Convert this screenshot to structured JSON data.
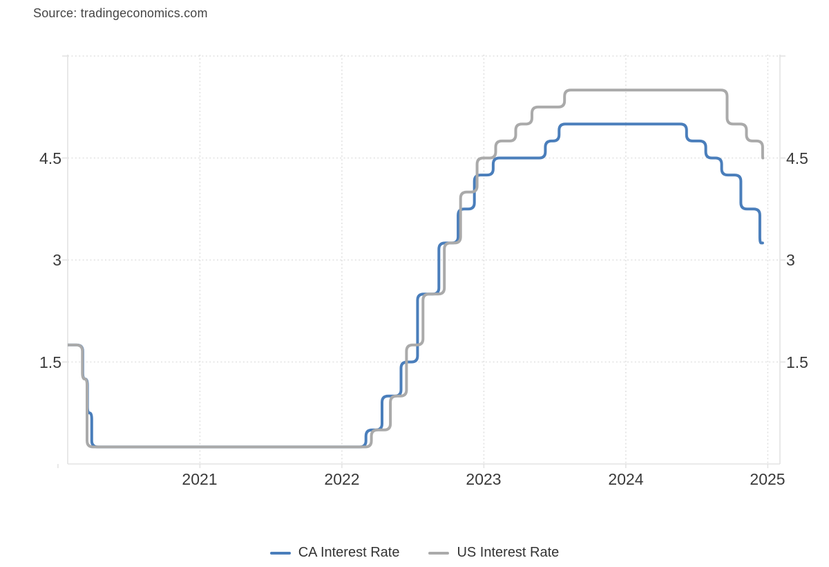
{
  "source_label": "Source: tradingeconomics.com",
  "legend": {
    "items": [
      {
        "label": "CA Interest Rate",
        "color": "#4a7ebb"
      },
      {
        "label": "US Interest Rate",
        "color": "#aaaaaa"
      }
    ]
  },
  "chart_data": {
    "type": "line",
    "title": "",
    "unit": "percent",
    "grid": "dotted",
    "legend_position": "bottom",
    "x_axis": {
      "start": "2020-01-01",
      "end": "2025-01-01",
      "tick_labels": [
        "2021",
        "2022",
        "2023",
        "2024",
        "2025"
      ]
    },
    "y_axis": {
      "min": 0,
      "max": 6.05,
      "ticks": [
        1.5,
        3,
        4.5
      ],
      "tick_labels": [
        "1.5",
        "3",
        "4.5"
      ],
      "gridlines": [
        1.5,
        3,
        4.5,
        6
      ],
      "labels_both_sides": true
    },
    "series": [
      {
        "name": "CA Interest Rate",
        "color": "#4a7ebb",
        "line_width": 4,
        "end_date": "2024-12-18",
        "steps": [
          [
            "2020-01-01",
            1.75
          ],
          [
            "2020-03-04",
            1.25
          ],
          [
            "2020-03-16",
            0.75
          ],
          [
            "2020-03-27",
            0.25
          ],
          [
            "2022-03-02",
            0.5
          ],
          [
            "2022-04-13",
            1.0
          ],
          [
            "2022-06-01",
            1.5
          ],
          [
            "2022-07-13",
            2.5
          ],
          [
            "2022-09-07",
            3.25
          ],
          [
            "2022-10-26",
            3.75
          ],
          [
            "2022-12-07",
            4.25
          ],
          [
            "2023-01-25",
            4.5
          ],
          [
            "2023-06-07",
            4.75
          ],
          [
            "2023-07-12",
            5.0
          ],
          [
            "2024-06-05",
            4.75
          ],
          [
            "2024-07-24",
            4.5
          ],
          [
            "2024-09-04",
            4.25
          ],
          [
            "2024-10-23",
            3.75
          ],
          [
            "2024-12-11",
            3.25
          ]
        ]
      },
      {
        "name": "US Interest Rate",
        "color": "#aaaaaa",
        "line_width": 4,
        "end_date": "2024-12-19",
        "steps": [
          [
            "2020-01-01",
            1.75
          ],
          [
            "2020-03-03",
            1.25
          ],
          [
            "2020-03-15",
            0.25
          ],
          [
            "2022-03-16",
            0.5
          ],
          [
            "2022-05-04",
            1.0
          ],
          [
            "2022-06-15",
            1.75
          ],
          [
            "2022-07-27",
            2.5
          ],
          [
            "2022-09-21",
            3.25
          ],
          [
            "2022-11-02",
            4.0
          ],
          [
            "2022-12-14",
            4.5
          ],
          [
            "2023-02-01",
            4.75
          ],
          [
            "2023-03-22",
            5.0
          ],
          [
            "2023-05-03",
            5.25
          ],
          [
            "2023-07-26",
            5.5
          ],
          [
            "2024-09-18",
            5.0
          ],
          [
            "2024-11-07",
            4.75
          ],
          [
            "2024-12-18",
            4.5
          ]
        ]
      }
    ]
  }
}
